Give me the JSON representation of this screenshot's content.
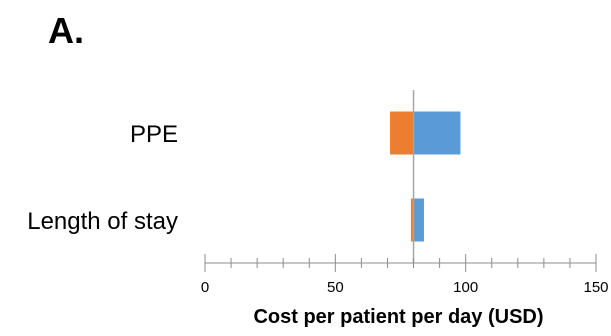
{
  "panel_label": "A.",
  "chart_data": {
    "type": "bar",
    "orientation": "horizontal",
    "variant": "tornado",
    "categories": [
      "PPE",
      "Length of stay"
    ],
    "baseline": 80,
    "series": [
      {
        "values": [
          71,
          79
        ],
        "color": "#ed7d31"
      },
      {
        "values": [
          98,
          84
        ],
        "color": "#5b9bd5"
      }
    ],
    "xlabel": "Cost per patient per day (USD)",
    "ylabel": "",
    "xlim": [
      0,
      150
    ],
    "xticks": [
      0,
      50,
      100,
      150
    ],
    "xtick_labels": [
      "0",
      "50",
      "100",
      "150"
    ],
    "minor_tick_step": 10,
    "baseline_color": "#a6a6a6",
    "grid": false
  }
}
